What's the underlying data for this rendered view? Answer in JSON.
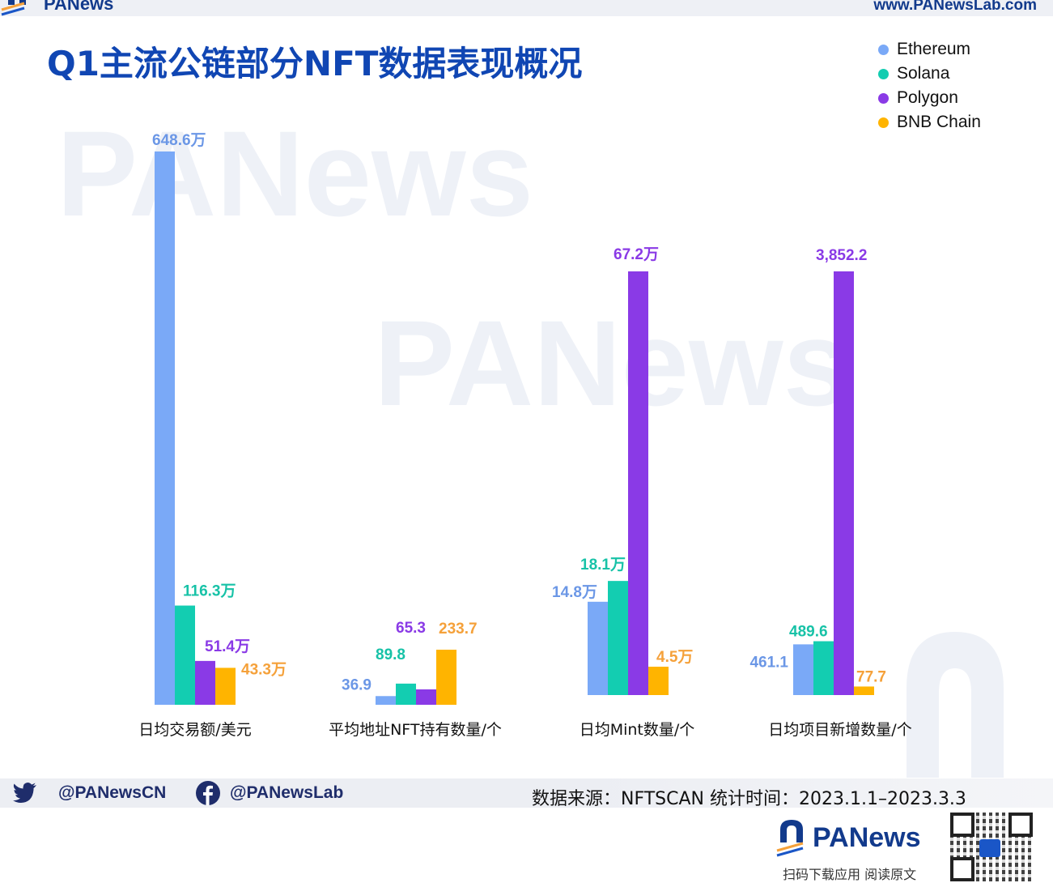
{
  "brand": {
    "logo_text": "PANews",
    "url": "www.PANewsLab.com",
    "watermark": "PANews"
  },
  "title": "Q1主流公链部分NFT数据表现概况",
  "legend": [
    {
      "name": "Ethereum",
      "color": "#7aa9f7"
    },
    {
      "name": "Solana",
      "color": "#13cdb1"
    },
    {
      "name": "Polygon",
      "color": "#8a3ae6"
    },
    {
      "name": "BNB Chain",
      "color": "#ffb400"
    }
  ],
  "colors": {
    "ethereum": "#7aa9f7",
    "solana": "#13cdb1",
    "polygon": "#8a3ae6",
    "bnb": "#ffb400",
    "label_ethereum": "#6b97e6",
    "label_solana": "#17c2a7",
    "label_polygon": "#8a3ae6",
    "label_bnb": "#f5a13a",
    "title": "#1046b3"
  },
  "chart_data": {
    "type": "bar",
    "title": "Q1主流公链部分NFT数据表现概况",
    "legend_position": "top-right",
    "grid": false,
    "categories": [
      "日均交易额/美元",
      "平均地址NFT持有数量/个",
      "日均Mint数量/个",
      "日均项目新增数量/个"
    ],
    "series": [
      {
        "name": "Ethereum",
        "values": [
          6486000,
          36.9,
          148000,
          461.1
        ],
        "labels": [
          "648.6万",
          "36.9",
          "14.8万",
          "461.1"
        ]
      },
      {
        "name": "Solana",
        "values": [
          1163000,
          89.8,
          181000,
          489.6
        ],
        "labels": [
          "116.3万",
          "89.8",
          "18.1万",
          "489.6"
        ]
      },
      {
        "name": "Polygon",
        "values": [
          514000,
          65.3,
          672000,
          3852.2
        ],
        "labels": [
          "51.4万",
          "65.3",
          "67.2万",
          "3,852.2"
        ]
      },
      {
        "name": "BNB Chain",
        "values": [
          433000,
          233.7,
          45000,
          77.7
        ],
        "labels": [
          "43.3万",
          "233.7",
          "4.5万",
          "77.7"
        ]
      }
    ]
  },
  "footer": {
    "twitter": "@PANewsCN",
    "facebook": "@PANewsLab",
    "source": "数据来源：NFTSCAN 统计时间：2023.1.1–2023.3.3",
    "logo_text": "PANews",
    "caption": "扫码下载应用 阅读原文"
  },
  "icons": {
    "twitter": "twitter-bird-icon",
    "facebook": "facebook-icon",
    "logo": "panews-logo-icon",
    "qr": "qr-code-icon"
  }
}
